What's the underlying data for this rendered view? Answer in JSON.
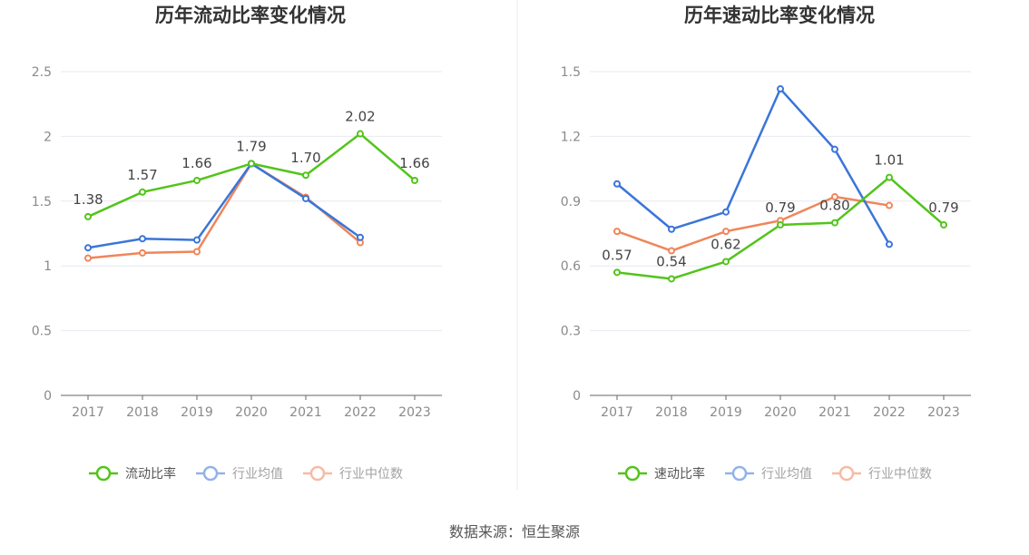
{
  "source_label": "数据来源：恒生聚源",
  "colors": {
    "company": "#52c41a",
    "industry_avg": "#3a75d9",
    "industry_median": "#f0855a",
    "grid": "#e6e9f0",
    "axis": "#666666"
  },
  "chart_data": [
    {
      "type": "line",
      "title": "历年流动比率变化情况",
      "categories": [
        "2017",
        "2018",
        "2019",
        "2020",
        "2021",
        "2022",
        "2023"
      ],
      "ylim": [
        0,
        2.5
      ],
      "yticks": [
        0,
        0.5,
        1,
        1.5,
        2,
        2.5
      ],
      "ytick_labels": [
        "0",
        "0.5",
        "1",
        "1.5",
        "2",
        "2.5"
      ],
      "series": [
        {
          "name": "流动比率",
          "key": "company",
          "values": [
            1.38,
            1.57,
            1.66,
            1.79,
            1.7,
            2.02,
            1.66
          ],
          "labels": [
            "1.38",
            "1.57",
            "1.66",
            "1.79",
            "1.70",
            "2.02",
            "1.66"
          ]
        },
        {
          "name": "行业均值",
          "key": "industry_avg",
          "values": [
            1.14,
            1.21,
            1.2,
            1.79,
            1.52,
            1.22,
            null
          ]
        },
        {
          "name": "行业中位数",
          "key": "industry_median",
          "values": [
            1.06,
            1.1,
            1.11,
            1.79,
            1.53,
            1.18,
            null
          ]
        }
      ],
      "legend_position": "bottom"
    },
    {
      "type": "line",
      "title": "历年速动比率变化情况",
      "categories": [
        "2017",
        "2018",
        "2019",
        "2020",
        "2021",
        "2022",
        "2023"
      ],
      "ylim": [
        0,
        1.5
      ],
      "yticks": [
        0,
        0.3,
        0.6,
        0.9,
        1.2,
        1.5
      ],
      "ytick_labels": [
        "0",
        "0.3",
        "0.6",
        "0.9",
        "1.2",
        "1.5"
      ],
      "series": [
        {
          "name": "速动比率",
          "key": "company",
          "values": [
            0.57,
            0.54,
            0.62,
            0.79,
            0.8,
            1.01,
            0.79
          ],
          "labels": [
            "0.57",
            "0.54",
            "0.62",
            "0.79",
            "0.80",
            "1.01",
            "0.79"
          ]
        },
        {
          "name": "行业均值",
          "key": "industry_avg",
          "values": [
            0.98,
            0.77,
            0.85,
            1.42,
            1.14,
            0.7,
            null
          ]
        },
        {
          "name": "行业中位数",
          "key": "industry_median",
          "values": [
            0.76,
            0.67,
            0.76,
            0.81,
            0.92,
            0.88,
            null
          ]
        }
      ],
      "legend_position": "bottom"
    }
  ]
}
